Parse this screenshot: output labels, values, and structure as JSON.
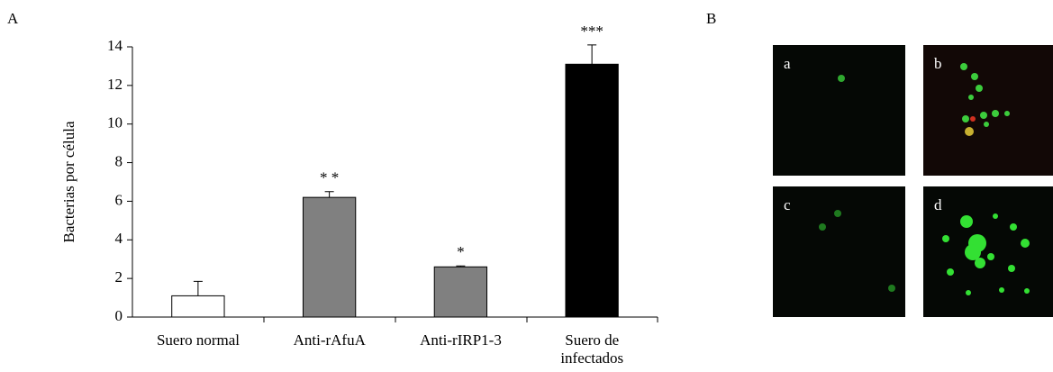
{
  "chart_data": {
    "type": "bar",
    "panel_label": "A",
    "ylabel": "Bacterias por célula",
    "categories": [
      "Suero normal",
      "Anti-rAfuA",
      "Anti-rIRP1-3",
      "Suero de\ninfectados"
    ],
    "values": [
      1.1,
      6.2,
      2.6,
      13.1
    ],
    "errors": [
      0.75,
      0.3,
      0.05,
      1.0
    ],
    "colors": [
      "#ffffff",
      "#808080",
      "#808080",
      "#000000"
    ],
    "significance": [
      null,
      "* *",
      "*",
      "***"
    ],
    "ylim": [
      0,
      14
    ],
    "yticks": [
      0,
      2,
      4,
      6,
      8,
      10,
      12,
      14
    ]
  },
  "panels": {
    "label": "B",
    "images": [
      "a",
      "b",
      "c",
      "d"
    ]
  }
}
